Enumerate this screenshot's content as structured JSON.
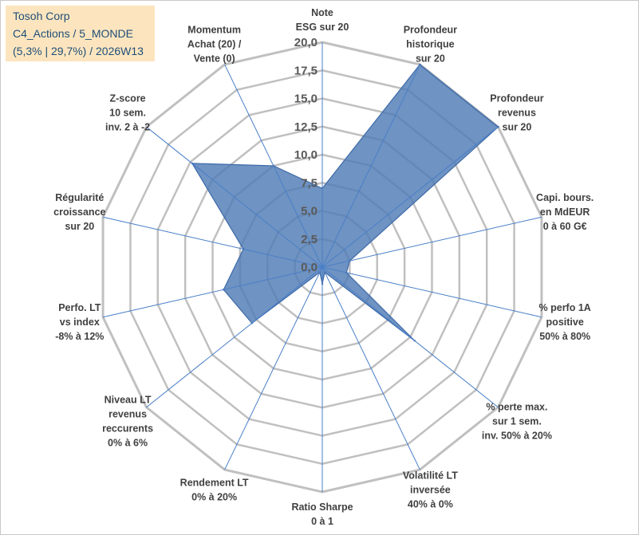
{
  "header": {
    "company": "Tosoh Corp",
    "portfolio": "C4_Actions / 5_MONDE",
    "stats": "(5,3% | 29,7%) / 2026W13"
  },
  "colors": {
    "fill": "#4f7bb5",
    "stroke": "#3d6aa8",
    "grid": "#c0c0c0",
    "spoke": "#4a7fc8",
    "title_bg": "#fce5be",
    "title_text": "#1f4e79"
  },
  "chart_data": {
    "type": "radar",
    "title": "Tosoh Corp",
    "rmin": 0,
    "rmax": 20,
    "tick_step": 2.5,
    "tick_labels": [
      "0,0",
      "2,5",
      "5,0",
      "7,5",
      "10,0",
      "12,5",
      "15,0",
      "17,5",
      "20,0"
    ],
    "axes": [
      {
        "lines": [
          "Note",
          "ESG sur 20"
        ]
      },
      {
        "lines": [
          "Profondeur",
          "historique",
          "sur 20"
        ]
      },
      {
        "lines": [
          "Profondeur",
          "revenus",
          "sur 20"
        ]
      },
      {
        "lines": [
          "Capi. bours.",
          "en MdEUR",
          "0 à 60 G€"
        ]
      },
      {
        "lines": [
          "% perfo 1A",
          "positive",
          "50% à 80%"
        ]
      },
      {
        "lines": [
          "% perte max.",
          "sur 1 sem.",
          "inv. 50% à 20%"
        ]
      },
      {
        "lines": [
          "Volatilité LT",
          "inversée",
          "40% à 0%"
        ]
      },
      {
        "lines": [
          "Ratio Sharpe",
          "0 à 1"
        ]
      },
      {
        "lines": [
          "Rendement LT",
          "0% à 20%"
        ]
      },
      {
        "lines": [
          "Niveau LT",
          "revenus",
          "reccurents",
          "0% à 6%"
        ]
      },
      {
        "lines": [
          "Perfo. LT",
          "vs index",
          "-8% à 12%"
        ]
      },
      {
        "lines": [
          "Régularité",
          "croissance",
          "sur 20"
        ]
      },
      {
        "lines": [
          "Z-score",
          "10 sem.",
          "inv. 2 à -2"
        ]
      },
      {
        "lines": [
          "Momentum",
          "Achat (20) /",
          "Vente (0)"
        ]
      }
    ],
    "series": [
      {
        "name": "Tosoh Corp",
        "values": [
          7,
          20,
          20,
          2.5,
          2.2,
          10.5,
          0.5,
          1.5,
          0.5,
          8,
          9,
          7.2,
          14.8,
          10
        ]
      }
    ]
  }
}
